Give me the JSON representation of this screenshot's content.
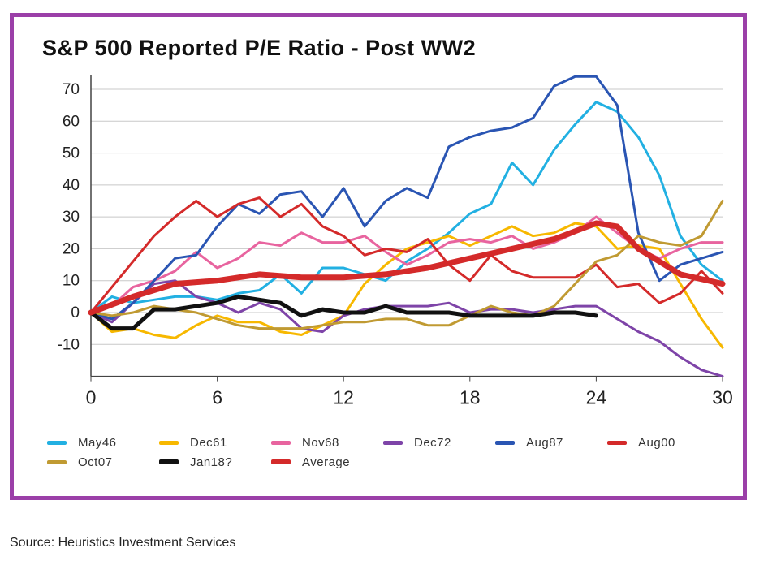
{
  "chart_data": {
    "type": "line",
    "title": "S&P 500 Reported P/E Ratio - Post WW2",
    "xlabel": "",
    "ylabel": "",
    "xlim": [
      0,
      30
    ],
    "ylim": [
      -20,
      75
    ],
    "x_ticks": [
      "0",
      "6",
      "12",
      "18",
      "24",
      "30"
    ],
    "y_ticks": [
      "70",
      "60",
      "50",
      "40",
      "30",
      "20",
      "10",
      "0",
      "-10"
    ],
    "grid": "horizontal",
    "source": "Source:  Heuristics Investment Services",
    "series": [
      {
        "name": "May46",
        "color": "#22b0e2",
        "width": 3,
        "x": [
          0,
          1,
          2,
          3,
          4,
          5,
          6,
          7,
          8,
          9,
          10,
          11,
          12,
          13,
          14,
          15,
          16,
          17,
          18,
          19,
          20,
          21,
          22,
          23,
          24,
          25,
          26,
          27,
          28,
          29,
          30
        ],
        "y": [
          0,
          5,
          3,
          4,
          5,
          5,
          4,
          6,
          7,
          12,
          6,
          14,
          14,
          12,
          10,
          16,
          20,
          25,
          31,
          34,
          47,
          40,
          51,
          59,
          66,
          63,
          55,
          43,
          24,
          15,
          10
        ]
      },
      {
        "name": "Dec61",
        "color": "#f7b800",
        "width": 3,
        "x": [
          0,
          1,
          2,
          3,
          4,
          5,
          6,
          7,
          8,
          9,
          10,
          11,
          12,
          13,
          14,
          15,
          16,
          17,
          18,
          19,
          20,
          21,
          22,
          23,
          24,
          25,
          26,
          27,
          28,
          29,
          30
        ],
        "y": [
          0,
          -6,
          -5,
          -7,
          -8,
          -4,
          -1,
          -3,
          -3,
          -6,
          -7,
          -4,
          -1,
          9,
          15,
          20,
          22,
          24,
          21,
          24,
          27,
          24,
          25,
          28,
          27,
          20,
          21,
          20,
          9,
          -2,
          -11
        ]
      },
      {
        "name": "Nov68",
        "color": "#e8649f",
        "width": 3,
        "x": [
          0,
          1,
          2,
          3,
          4,
          5,
          6,
          7,
          8,
          9,
          10,
          11,
          12,
          13,
          14,
          15,
          16,
          17,
          18,
          19,
          20,
          21,
          22,
          23,
          24,
          25,
          26,
          27,
          28,
          29,
          30
        ],
        "y": [
          0,
          2,
          8,
          10,
          13,
          19,
          14,
          17,
          22,
          21,
          25,
          22,
          22,
          24,
          19,
          15,
          18,
          22,
          23,
          22,
          24,
          20,
          22,
          25,
          30,
          25,
          20,
          17,
          20,
          22,
          22
        ]
      },
      {
        "name": "Dec72",
        "color": "#7e44a8",
        "width": 3,
        "x": [
          0,
          1,
          2,
          3,
          4,
          5,
          6,
          7,
          8,
          9,
          10,
          11,
          12,
          13,
          14,
          15,
          16,
          17,
          18,
          19,
          20,
          21,
          22,
          23,
          24,
          25,
          26,
          27,
          28,
          29,
          30
        ],
        "y": [
          0,
          -3,
          3,
          9,
          10,
          5,
          3,
          0,
          3,
          1,
          -5,
          -6,
          -1,
          1,
          2,
          2,
          2,
          3,
          0,
          1,
          1,
          0,
          1,
          2,
          2,
          -2,
          -6,
          -9,
          -14,
          -18,
          -20
        ]
      },
      {
        "name": "Aug87",
        "color": "#2a55b3",
        "width": 3,
        "x": [
          0,
          1,
          2,
          3,
          4,
          5,
          6,
          7,
          8,
          9,
          10,
          11,
          12,
          13,
          14,
          15,
          16,
          17,
          18,
          19,
          20,
          21,
          22,
          23,
          24,
          25,
          26,
          27,
          28,
          29,
          30
        ],
        "y": [
          0,
          -2,
          3,
          10,
          17,
          18,
          27,
          34,
          31,
          37,
          38,
          30,
          39,
          27,
          35,
          39,
          36,
          52,
          55,
          57,
          58,
          61,
          71,
          74,
          74,
          65,
          25,
          10,
          15,
          17,
          19
        ]
      },
      {
        "name": "Aug00",
        "color": "#d42a2a",
        "width": 3,
        "x": [
          0,
          1,
          2,
          3,
          4,
          5,
          6,
          7,
          8,
          9,
          10,
          11,
          12,
          13,
          14,
          15,
          16,
          17,
          18,
          19,
          20,
          21,
          22,
          23,
          24,
          25,
          26,
          27,
          28,
          29,
          30
        ],
        "y": [
          0,
          8,
          16,
          24,
          30,
          35,
          30,
          34,
          36,
          30,
          34,
          27,
          24,
          18,
          20,
          19,
          23,
          15,
          10,
          18,
          13,
          11,
          11,
          11,
          15,
          8,
          9,
          3,
          6,
          13,
          6
        ]
      },
      {
        "name": "Oct07",
        "color": "#c09a32",
        "width": 3,
        "x": [
          0,
          1,
          2,
          3,
          4,
          5,
          6,
          7,
          8,
          9,
          10,
          11,
          12,
          13,
          14,
          15,
          16,
          17,
          18,
          19,
          20,
          21,
          22,
          23,
          24,
          25,
          26,
          27,
          28,
          29,
          30
        ],
        "y": [
          0,
          -1,
          0,
          2,
          1,
          0,
          -2,
          -4,
          -5,
          -5,
          -5,
          -4,
          -3,
          -3,
          -2,
          -2,
          -4,
          -4,
          -1,
          2,
          0,
          -1,
          2,
          9,
          16,
          18,
          24,
          22,
          21,
          24,
          35
        ]
      },
      {
        "name": "Jan18?",
        "color": "#111111",
        "width": 5,
        "x": [
          0,
          1,
          2,
          3,
          4,
          5,
          6,
          7,
          8,
          9,
          10,
          11,
          12,
          13,
          14,
          15,
          16,
          17,
          18,
          19,
          20,
          21,
          22,
          23,
          24
        ],
        "y": [
          0,
          -5,
          -5,
          1,
          1,
          2,
          3,
          5,
          4,
          3,
          -1,
          1,
          0,
          0,
          2,
          0,
          0,
          0,
          -1,
          -1,
          -1,
          -1,
          0,
          0,
          -1
        ]
      },
      {
        "name": "Average",
        "color": "#d42a2a",
        "width": 7,
        "x": [
          0,
          2,
          4,
          6,
          8,
          10,
          12,
          14,
          16,
          18,
          20,
          22,
          24,
          25,
          26,
          28,
          30
        ],
        "y": [
          0,
          5,
          9,
          10,
          12,
          11,
          11,
          12,
          14,
          17,
          20,
          23,
          28,
          27,
          20,
          12,
          9
        ]
      }
    ]
  },
  "legend_rows": [
    [
      "May46",
      "Dec61",
      "Nov68",
      "Dec72",
      "Aug87",
      "Aug00"
    ],
    [
      "Oct07",
      "Jan18?",
      "Average"
    ]
  ]
}
